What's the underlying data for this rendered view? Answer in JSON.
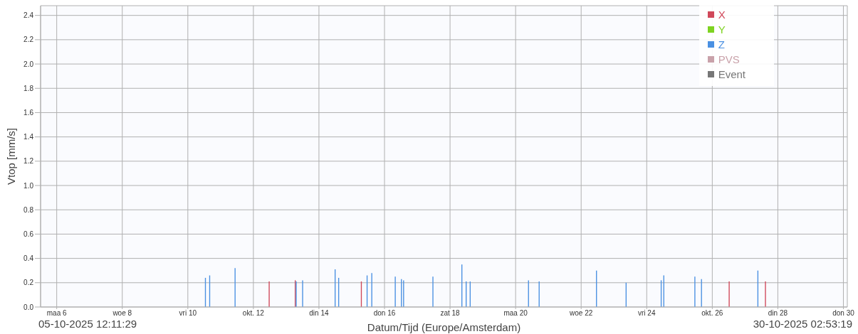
{
  "chart_data": {
    "type": "bar",
    "xlabel": "Datum/Tijd (Europe/Amsterdam)",
    "ylabel": "Vtop [mm/s]",
    "annotations": [
      "05-10-2025 12:11:29",
      "30-10-2025 02:53:19"
    ],
    "series": [
      {
        "name": "X",
        "color": "#d0485a",
        "x": [
          "2025-10-12T12:00",
          "2025-10-13T07:05",
          "2025-10-15T07:29",
          "2025-10-26T12:49",
          "2025-10-27T15:22"
        ],
        "values": [
          0.21,
          0.22,
          0.21,
          0.21,
          0.21
        ]
      },
      {
        "name": "Y",
        "color": "#7ed321"
      },
      {
        "name": "Z",
        "color": "#4a90e2",
        "x": [
          "2025-10-10T12:36",
          "2025-10-10T15:43",
          "2025-10-11T10:19",
          "2025-10-13T07:05",
          "2025-10-13T11:46",
          "2025-10-14T11:34",
          "2025-10-14T14:10",
          "2025-10-15T10:59",
          "2025-10-15T14:25",
          "2025-10-16T07:36",
          "2025-10-16T12:07",
          "2025-10-16T13:42",
          "2025-10-17T11:11",
          "2025-10-18T08:23",
          "2025-10-18T11:31",
          "2025-10-18T14:28",
          "2025-10-20T09:10",
          "2025-10-20T16:58",
          "2025-10-22T10:56",
          "2025-10-23T08:38",
          "2025-10-24T10:19",
          "2025-10-24T12:14",
          "2025-10-25T10:59",
          "2025-10-25T15:50",
          "2025-10-27T09:07"
        ],
        "values": [
          0.24,
          0.26,
          0.32,
          0.21,
          0.22,
          0.31,
          0.24,
          0.26,
          0.28,
          0.25,
          0.23,
          0.22,
          0.25,
          0.35,
          0.21,
          0.21,
          0.22,
          0.21,
          0.3,
          0.2,
          0.22,
          0.26,
          0.25,
          0.23,
          0.3
        ]
      },
      {
        "name": "PVS",
        "color": "#c9a2aa"
      },
      {
        "name": "Event",
        "color": "#777777"
      }
    ],
    "xlim": [
      "2025-10-05T12:11",
      "2025-10-30T02:53"
    ],
    "xticks": [
      {
        "value": "2025-10-06",
        "label": "maa 6"
      },
      {
        "value": "2025-10-08",
        "label": "woe 8"
      },
      {
        "value": "2025-10-10",
        "label": "vri 10"
      },
      {
        "value": "2025-10-12",
        "label": "okt. 12"
      },
      {
        "value": "2025-10-14",
        "label": "din 14"
      },
      {
        "value": "2025-10-16",
        "label": "don 16"
      },
      {
        "value": "2025-10-18",
        "label": "zat 18"
      },
      {
        "value": "2025-10-20",
        "label": "maa 20"
      },
      {
        "value": "2025-10-22",
        "label": "woe 22"
      },
      {
        "value": "2025-10-24",
        "label": "vri 24"
      },
      {
        "value": "2025-10-26",
        "label": "okt. 26"
      },
      {
        "value": "2025-10-28",
        "label": "din 28"
      },
      {
        "value": "2025-10-30",
        "label": "don 30"
      }
    ],
    "ylim": [
      0,
      2.48
    ],
    "yticks": [
      {
        "value": 0,
        "label": "0.0"
      },
      0.2,
      0.4,
      0.6,
      0.8,
      {
        "value": 1,
        "label": "1.0"
      },
      1.2,
      1.4,
      1.6,
      1.8,
      {
        "value": 2,
        "label": "2.0"
      },
      2.2,
      2.4
    ],
    "grid": true,
    "legend": "top right"
  }
}
